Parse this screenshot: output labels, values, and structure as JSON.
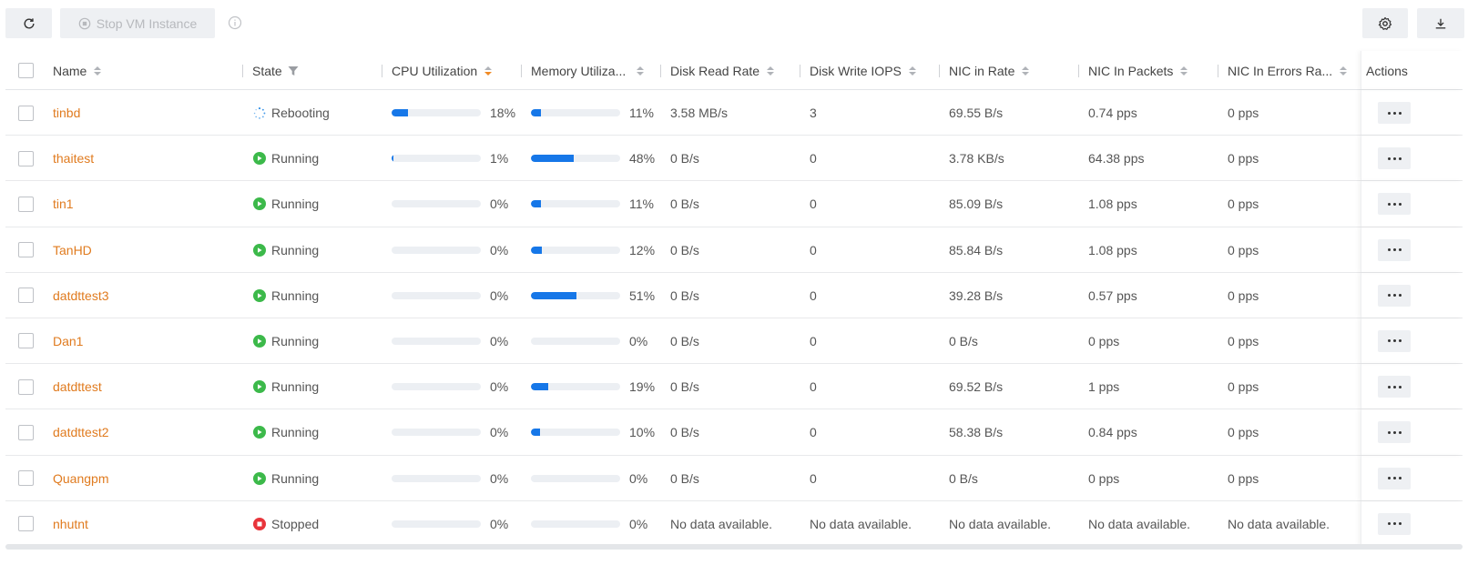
{
  "toolbar": {
    "refresh_icon": "refresh-icon",
    "stop_label": "Stop VM Instance",
    "stop_icon": "stop-circle-icon",
    "info_icon": "info-icon",
    "settings_icon": "gear-icon",
    "download_icon": "download-icon"
  },
  "table": {
    "headers": {
      "name": "Name",
      "state": "State",
      "cpu": "CPU Utilization",
      "memory": "Memory Utiliza...",
      "disk_read": "Disk Read Rate",
      "disk_write": "Disk Write IOPS",
      "nic_in_rate": "NIC in Rate",
      "nic_in_packets": "NIC In Packets",
      "nic_in_errors": "NIC In Errors Ra...",
      "actions": "Actions"
    },
    "rows": [
      {
        "name": "tinbd",
        "state": "Rebooting",
        "state_kind": "rebooting",
        "cpu": 18,
        "cpu_label": "18%",
        "mem": 11,
        "mem_label": "11%",
        "disk_read": "3.58 MB/s",
        "disk_write": "3",
        "nic_in_rate": "69.55 B/s",
        "nic_in_packets": "0.74 pps",
        "nic_in_errors": "0 pps"
      },
      {
        "name": "thaitest",
        "state": "Running",
        "state_kind": "running",
        "cpu": 1,
        "cpu_label": "1%",
        "mem": 48,
        "mem_label": "48%",
        "disk_read": "0 B/s",
        "disk_write": "0",
        "nic_in_rate": "3.78 KB/s",
        "nic_in_packets": "64.38 pps",
        "nic_in_errors": "0 pps"
      },
      {
        "name": "tin1",
        "state": "Running",
        "state_kind": "running",
        "cpu": 0,
        "cpu_label": "0%",
        "mem": 11,
        "mem_label": "11%",
        "disk_read": "0 B/s",
        "disk_write": "0",
        "nic_in_rate": "85.09 B/s",
        "nic_in_packets": "1.08 pps",
        "nic_in_errors": "0 pps"
      },
      {
        "name": "TanHD",
        "state": "Running",
        "state_kind": "running",
        "cpu": 0,
        "cpu_label": "0%",
        "mem": 12,
        "mem_label": "12%",
        "disk_read": "0 B/s",
        "disk_write": "0",
        "nic_in_rate": "85.84 B/s",
        "nic_in_packets": "1.08 pps",
        "nic_in_errors": "0 pps"
      },
      {
        "name": "datdttest3",
        "state": "Running",
        "state_kind": "running",
        "cpu": 0,
        "cpu_label": "0%",
        "mem": 51,
        "mem_label": "51%",
        "disk_read": "0 B/s",
        "disk_write": "0",
        "nic_in_rate": "39.28 B/s",
        "nic_in_packets": "0.57 pps",
        "nic_in_errors": "0 pps"
      },
      {
        "name": "Dan1",
        "state": "Running",
        "state_kind": "running",
        "cpu": 0,
        "cpu_label": "0%",
        "mem": 0,
        "mem_label": "0%",
        "disk_read": "0 B/s",
        "disk_write": "0",
        "nic_in_rate": "0 B/s",
        "nic_in_packets": "0 pps",
        "nic_in_errors": "0 pps"
      },
      {
        "name": "datdttest",
        "state": "Running",
        "state_kind": "running",
        "cpu": 0,
        "cpu_label": "0%",
        "mem": 19,
        "mem_label": "19%",
        "disk_read": "0 B/s",
        "disk_write": "0",
        "nic_in_rate": "69.52 B/s",
        "nic_in_packets": "1 pps",
        "nic_in_errors": "0 pps"
      },
      {
        "name": "datdttest2",
        "state": "Running",
        "state_kind": "running",
        "cpu": 0,
        "cpu_label": "0%",
        "mem": 10,
        "mem_label": "10%",
        "disk_read": "0 B/s",
        "disk_write": "0",
        "nic_in_rate": "58.38 B/s",
        "nic_in_packets": "0.84 pps",
        "nic_in_errors": "0 pps"
      },
      {
        "name": "Quangpm",
        "state": "Running",
        "state_kind": "running",
        "cpu": 0,
        "cpu_label": "0%",
        "mem": 0,
        "mem_label": "0%",
        "disk_read": "0 B/s",
        "disk_write": "0",
        "nic_in_rate": "0 B/s",
        "nic_in_packets": "0 pps",
        "nic_in_errors": "0 pps"
      },
      {
        "name": "nhutnt",
        "state": "Stopped",
        "state_kind": "stopped",
        "cpu": 0,
        "cpu_label": "0%",
        "mem": 0,
        "mem_label": "0%",
        "disk_read": "No data available.",
        "disk_write": "No data available.",
        "nic_in_rate": "No data available.",
        "nic_in_packets": "No data available.",
        "nic_in_errors": "No data available."
      }
    ]
  },
  "colors": {
    "accent_link": "#e07b1f",
    "bar_fill": "#1677e8",
    "running": "#3cb94a",
    "stopped": "#e8343b",
    "rebooting": "#2a8ce6"
  }
}
